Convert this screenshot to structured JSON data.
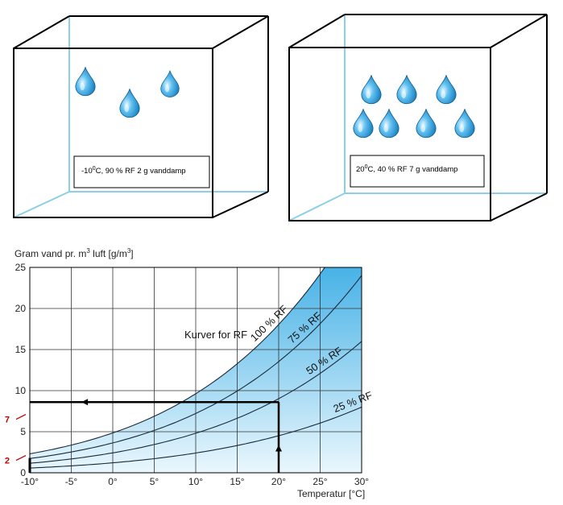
{
  "boxes": [
    {
      "temp_prefix": "-10",
      "temp_sup": "0",
      "temp_rest": "C, 90 % RF 2 g vanddamp",
      "drops": 3
    },
    {
      "temp_prefix": "20",
      "temp_sup": "0",
      "temp_rest": "C, 40 % RF 7 g vanddamp",
      "drops": 7
    }
  ],
  "chart_data": {
    "type": "line",
    "ylabel_pre": "Gram vand pr. m",
    "ylabel_sup": "3",
    "ylabel_mid": " luft [g/m",
    "ylabel_sup2": "3",
    "ylabel_post": "]",
    "xlabel": "Temperatur [°C]",
    "xlim": [
      -10,
      30
    ],
    "ylim": [
      0,
      25
    ],
    "x_ticks": [
      -10,
      -5,
      0,
      5,
      10,
      15,
      20,
      25,
      30
    ],
    "x_tick_labels": [
      "-10°",
      "-5°",
      "0°",
      "5°",
      "10°",
      "15°",
      "20°",
      "25°",
      "30°"
    ],
    "y_ticks": [
      0,
      5,
      10,
      15,
      20,
      25
    ],
    "y_tick_labels": [
      "0",
      "5",
      "10",
      "15",
      "20",
      "25"
    ],
    "grid": true,
    "annotation": "Kurver for RF",
    "series": [
      {
        "name": "100 % RF",
        "rh": 1.0
      },
      {
        "name": "75 % RF",
        "rh": 0.75
      },
      {
        "name": "50 % RF",
        "rh": 0.5
      },
      {
        "name": "25 % RF",
        "rh": 0.25
      }
    ],
    "saturation_points": {
      "x": [
        -10,
        -5,
        0,
        5,
        10,
        15,
        20,
        25,
        30
      ],
      "y": [
        2.14,
        3.24,
        4.85,
        6.8,
        9.4,
        12.8,
        17.3,
        23.0,
        30.3
      ]
    },
    "markers": [
      {
        "label": "7",
        "value": 7
      },
      {
        "label": "2",
        "value": 2
      }
    ],
    "path": {
      "x_start": 20,
      "y_level": 8.6,
      "x_end": -10
    },
    "colors": {
      "fill_dark": "#1a9fe0",
      "fill_light": "#e6f5fc",
      "path": "#000000",
      "marker": "#c00000"
    }
  }
}
